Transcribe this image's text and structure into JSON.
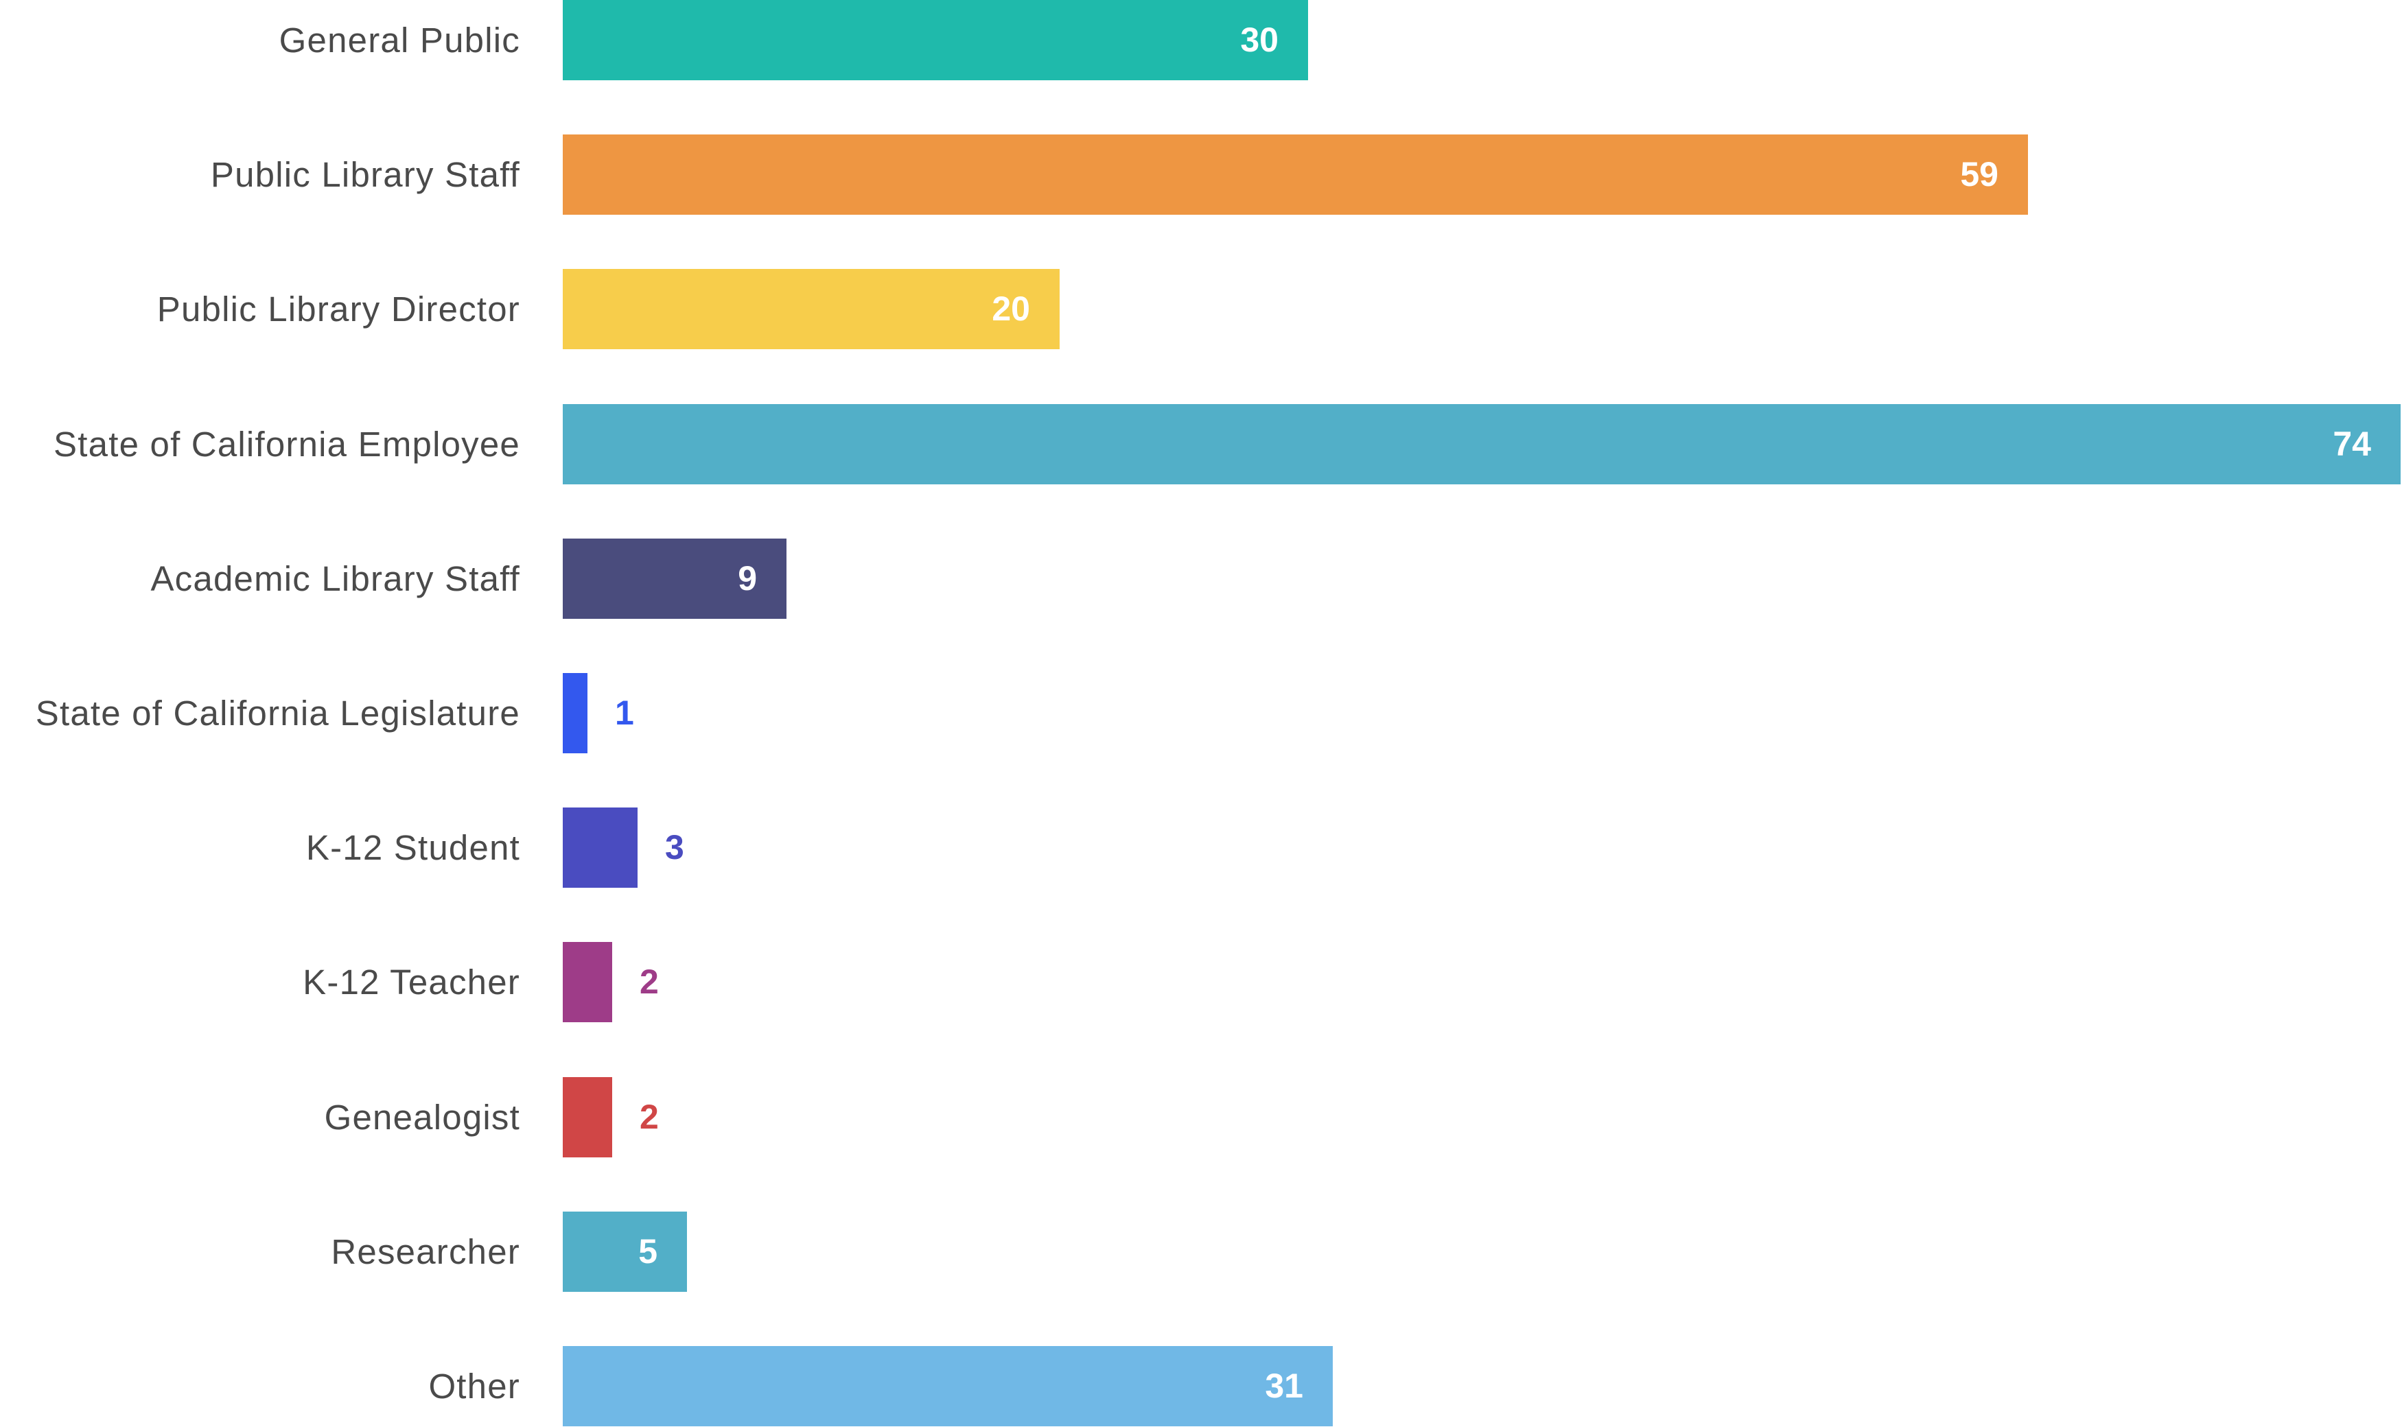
{
  "chart_data": {
    "type": "bar",
    "orientation": "horizontal",
    "title": "",
    "xlabel": "",
    "ylabel": "",
    "xlim": [
      0,
      74
    ],
    "grid": false,
    "legend": null,
    "value_labels": true,
    "categories": [
      "General Public",
      "Public Library Staff",
      "Public Library Director",
      "State of California Employee",
      "Academic Library Staff",
      "State of California Legislature",
      "K-12 Student",
      "K-12 Teacher",
      "Genealogist",
      "Researcher",
      "Other"
    ],
    "values": [
      30,
      59,
      20,
      74,
      9,
      1,
      3,
      2,
      2,
      5,
      31
    ],
    "colors": [
      "#1FBAAB",
      "#EE9642",
      "#F7CD4B",
      "#52AFC8",
      "#4A4C7D",
      "#3358EE",
      "#4A4CC0",
      "#9E3C88",
      "#D04646",
      "#52AFC8",
      "#70B8E6"
    ]
  },
  "rows": [
    {
      "label": "General Public",
      "value": "30",
      "color": "#1FBAAB"
    },
    {
      "label": "Public Library Staff",
      "value": "59",
      "color": "#EE9642"
    },
    {
      "label": "Public Library Director",
      "value": "20",
      "color": "#F7CD4B"
    },
    {
      "label": "State of California Employee",
      "value": "74",
      "color": "#52AFC8"
    },
    {
      "label": "Academic Library Staff",
      "value": "9",
      "color": "#4A4C7D"
    },
    {
      "label": "State of California Legislature",
      "value": "1",
      "color": "#3358EE"
    },
    {
      "label": "K-12 Student",
      "value": "3",
      "color": "#4A4CC0"
    },
    {
      "label": "K-12 Teacher",
      "value": "2",
      "color": "#9E3C88"
    },
    {
      "label": "Genealogist",
      "value": "2",
      "color": "#D04646"
    },
    {
      "label": "Researcher",
      "value": "5",
      "color": "#52AFC8"
    },
    {
      "label": "Other",
      "value": "31",
      "color": "#70B8E6"
    }
  ],
  "style": {
    "label_color": "#4A4A4A",
    "inside_value_color": "#FFFFFF"
  }
}
